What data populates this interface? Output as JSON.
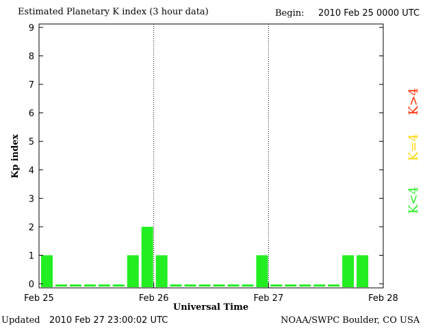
{
  "header": {
    "title": "Estimated Planetary K index (3 hour data)",
    "begin_label": "Begin:",
    "begin_value": "2010 Feb 25 0000 UTC"
  },
  "footer": {
    "updated_label": "Updated",
    "updated_value": "2010 Feb 27 23:00:02 UTC",
    "source": "NOAA/SWPC Boulder, CO USA"
  },
  "legend": [
    {
      "label": "K>4",
      "color": "#ff2a00"
    },
    {
      "label": "K=4",
      "color": "#ffd700"
    },
    {
      "label": "K<4",
      "color": "#22ee22"
    }
  ],
  "chart_data": {
    "type": "bar",
    "title": "Estimated Planetary K index (3 hour data)",
    "xlabel": "Universal Time",
    "ylabel": "Kp index",
    "ylim": [
      0,
      9
    ],
    "yticks": [
      "0",
      "1",
      "2",
      "3",
      "4",
      "5",
      "6",
      "7",
      "8",
      "9"
    ],
    "xticks": [
      "Feb 25",
      "Feb 26",
      "Feb 27",
      "Feb 28"
    ],
    "xlim_days": [
      0,
      3
    ],
    "interval_hours": 3,
    "values": [
      1,
      0,
      0,
      0,
      0,
      0,
      1,
      2,
      1,
      0,
      0,
      0,
      0,
      0,
      0,
      1,
      0,
      0,
      0,
      0,
      0,
      1,
      1
    ],
    "bar_color": "#22ee22",
    "zero_marker_color": "#22ee22",
    "day_separators": [
      "Feb 26",
      "Feb 27"
    ]
  }
}
